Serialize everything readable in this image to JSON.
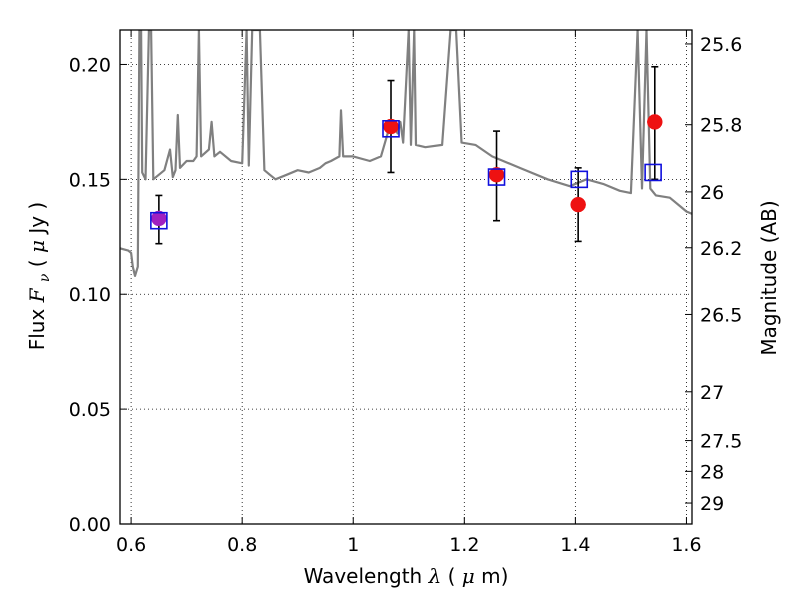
{
  "chart_data": {
    "type": "scatter",
    "xlabel": "Wavelength  λ (μm)",
    "ylabel": "Flux  F_ν  ( μJy )",
    "ylabel_parts": {
      "prefix": "Flux  ",
      "symbol": "F",
      "subscript": "ν",
      "open": "  (  ",
      "mu": "μ",
      "unit": "Jy )"
    },
    "xlabel_parts": {
      "prefix": "Wavelength  ",
      "lambda": "λ",
      "open": " (",
      "mu": "μ",
      "unit": "m)"
    },
    "right_label": "Magnitude (AB)",
    "xlim": [
      0.58,
      1.61
    ],
    "ylim": [
      0.0,
      0.215
    ],
    "x_ticks": [
      {
        "value": 0.6,
        "label": "0.6"
      },
      {
        "value": 0.8,
        "label": "0.8"
      },
      {
        "value": 1.0,
        "label": "1"
      },
      {
        "value": 1.2,
        "label": "1.2"
      },
      {
        "value": 1.4,
        "label": "1.4"
      },
      {
        "value": 1.6,
        "label": "1.6"
      }
    ],
    "y_ticks": [
      {
        "value": 0.0,
        "label": "0.00"
      },
      {
        "value": 0.05,
        "label": "0.05"
      },
      {
        "value": 0.1,
        "label": "0.10"
      },
      {
        "value": 0.15,
        "label": "0.15"
      },
      {
        "value": 0.2,
        "label": "0.20"
      }
    ],
    "right_ticks": [
      {
        "value": 25.6,
        "label": "25.6"
      },
      {
        "value": 25.8,
        "label": "25.8"
      },
      {
        "value": 26.0,
        "label": "26"
      },
      {
        "value": 26.2,
        "label": "26.2"
      },
      {
        "value": 26.5,
        "label": "26.5"
      },
      {
        "value": 27.0,
        "label": "27"
      },
      {
        "value": 27.5,
        "label": "27.5"
      },
      {
        "value": 28.0,
        "label": "28"
      },
      {
        "value": 29.0,
        "label": "29"
      }
    ],
    "grid": true,
    "observed": [
      {
        "x": 0.65,
        "y": 0.133,
        "yerr_low": 0.122,
        "yerr_high": 0.143,
        "color": "#a020c0"
      },
      {
        "x": 1.068,
        "y": 0.173,
        "yerr_low": 0.153,
        "yerr_high": 0.193,
        "color": "#ee1111"
      },
      {
        "x": 1.258,
        "y": 0.152,
        "yerr_low": 0.132,
        "yerr_high": 0.171,
        "color": "#ee1111"
      },
      {
        "x": 1.405,
        "y": 0.139,
        "yerr_low": 0.123,
        "yerr_high": 0.155,
        "color": "#ee1111"
      },
      {
        "x": 1.543,
        "y": 0.175,
        "yerr_low": 0.15,
        "yerr_high": 0.199,
        "color": "#ee1111"
      }
    ],
    "model_photometry": [
      {
        "x": 0.65,
        "y": 0.132
      },
      {
        "x": 1.068,
        "y": 0.172
      },
      {
        "x": 1.258,
        "y": 0.151
      },
      {
        "x": 1.407,
        "y": 0.15
      },
      {
        "x": 1.54,
        "y": 0.153
      }
    ],
    "sed_color": "#808080",
    "box_color": "#1010dd",
    "errorbar_color": "#000000",
    "sed_model": [
      [
        0.58,
        0.12
      ],
      [
        0.595,
        0.119
      ],
      [
        0.6,
        0.118
      ],
      [
        0.603,
        0.112
      ],
      [
        0.607,
        0.108
      ],
      [
        0.612,
        0.112
      ],
      [
        0.615,
        0.215
      ],
      [
        0.618,
        0.215
      ],
      [
        0.62,
        0.153
      ],
      [
        0.626,
        0.15
      ],
      [
        0.632,
        0.215
      ],
      [
        0.636,
        0.215
      ],
      [
        0.64,
        0.15
      ],
      [
        0.66,
        0.154
      ],
      [
        0.67,
        0.163
      ],
      [
        0.675,
        0.151
      ],
      [
        0.68,
        0.154
      ],
      [
        0.684,
        0.178
      ],
      [
        0.688,
        0.155
      ],
      [
        0.7,
        0.158
      ],
      [
        0.712,
        0.158
      ],
      [
        0.718,
        0.16
      ],
      [
        0.722,
        0.215
      ],
      [
        0.726,
        0.16
      ],
      [
        0.74,
        0.163
      ],
      [
        0.745,
        0.175
      ],
      [
        0.75,
        0.16
      ],
      [
        0.76,
        0.162
      ],
      [
        0.78,
        0.158
      ],
      [
        0.8,
        0.157
      ],
      [
        0.808,
        0.215
      ],
      [
        0.812,
        0.156
      ],
      [
        0.818,
        0.215
      ],
      [
        0.828,
        0.215
      ],
      [
        0.832,
        0.215
      ],
      [
        0.84,
        0.154
      ],
      [
        0.85,
        0.152
      ],
      [
        0.86,
        0.15
      ],
      [
        0.88,
        0.152
      ],
      [
        0.9,
        0.154
      ],
      [
        0.92,
        0.153
      ],
      [
        0.94,
        0.155
      ],
      [
        0.95,
        0.157
      ],
      [
        0.96,
        0.158
      ],
      [
        0.975,
        0.16
      ],
      [
        0.978,
        0.18
      ],
      [
        0.982,
        0.16
      ],
      [
        1.0,
        0.16
      ],
      [
        1.03,
        0.158
      ],
      [
        1.05,
        0.16
      ],
      [
        1.068,
        0.175
      ],
      [
        1.08,
        0.17
      ],
      [
        1.085,
        0.175
      ],
      [
        1.09,
        0.166
      ],
      [
        1.1,
        0.215
      ],
      [
        1.104,
        0.165
      ],
      [
        1.11,
        0.215
      ],
      [
        1.113,
        0.165
      ],
      [
        1.13,
        0.164
      ],
      [
        1.16,
        0.165
      ],
      [
        1.175,
        0.215
      ],
      [
        1.185,
        0.215
      ],
      [
        1.195,
        0.166
      ],
      [
        1.22,
        0.165
      ],
      [
        1.25,
        0.16
      ],
      [
        1.27,
        0.158
      ],
      [
        1.3,
        0.155
      ],
      [
        1.35,
        0.15
      ],
      [
        1.39,
        0.147
      ],
      [
        1.42,
        0.15
      ],
      [
        1.45,
        0.148
      ],
      [
        1.48,
        0.145
      ],
      [
        1.5,
        0.144
      ],
      [
        1.512,
        0.215
      ],
      [
        1.52,
        0.146
      ],
      [
        1.528,
        0.215
      ],
      [
        1.535,
        0.146
      ],
      [
        1.545,
        0.143
      ],
      [
        1.57,
        0.142
      ],
      [
        1.59,
        0.138
      ],
      [
        1.6,
        0.136
      ],
      [
        1.61,
        0.135
      ]
    ]
  }
}
